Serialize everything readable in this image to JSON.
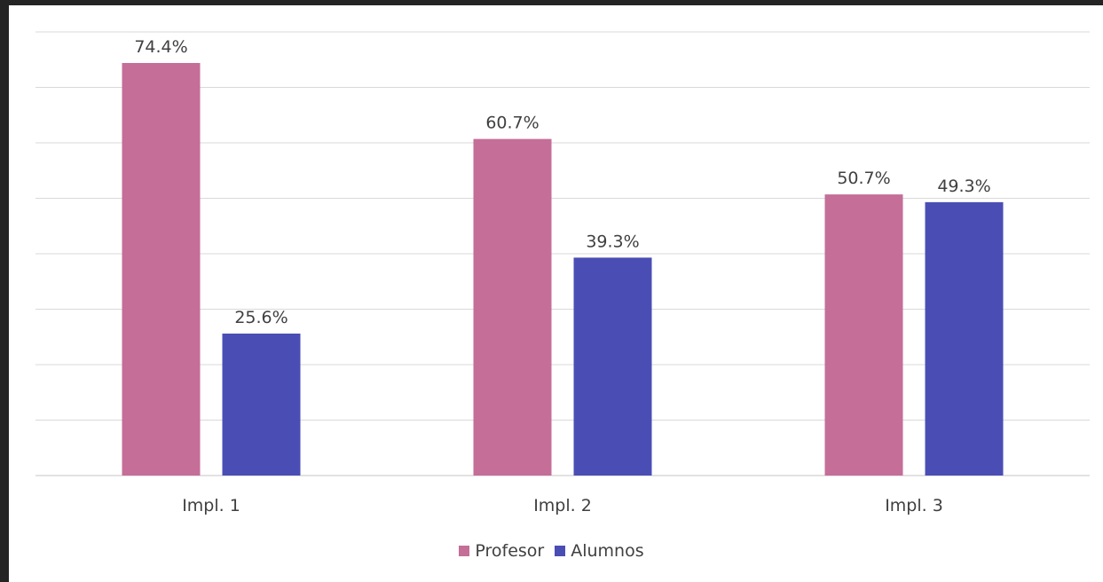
{
  "chart_data": {
    "type": "bar",
    "title": "",
    "xlabel": "",
    "ylabel": "",
    "categories": [
      "Impl. 1",
      "Impl. 2",
      "Impl. 3"
    ],
    "series": [
      {
        "name": "Profesor",
        "values": [
          74.4,
          60.7,
          50.7
        ],
        "labels": [
          "74.4%",
          "60.7%",
          "50.7%"
        ],
        "color": "#c46e98"
      },
      {
        "name": "Alumnos",
        "values": [
          25.6,
          39.3,
          49.3
        ],
        "labels": [
          "25.6%",
          "39.3%",
          "49.3%"
        ],
        "color": "#4a4eb4"
      }
    ],
    "ylim": [
      0,
      80
    ],
    "gridlines": true,
    "y_axis_labels_shown": false,
    "legend_position": "bottom"
  },
  "colors": {
    "background": "#242424",
    "panel": "#ffffff",
    "gridline": "#d9d9d9",
    "text": "#404040"
  }
}
